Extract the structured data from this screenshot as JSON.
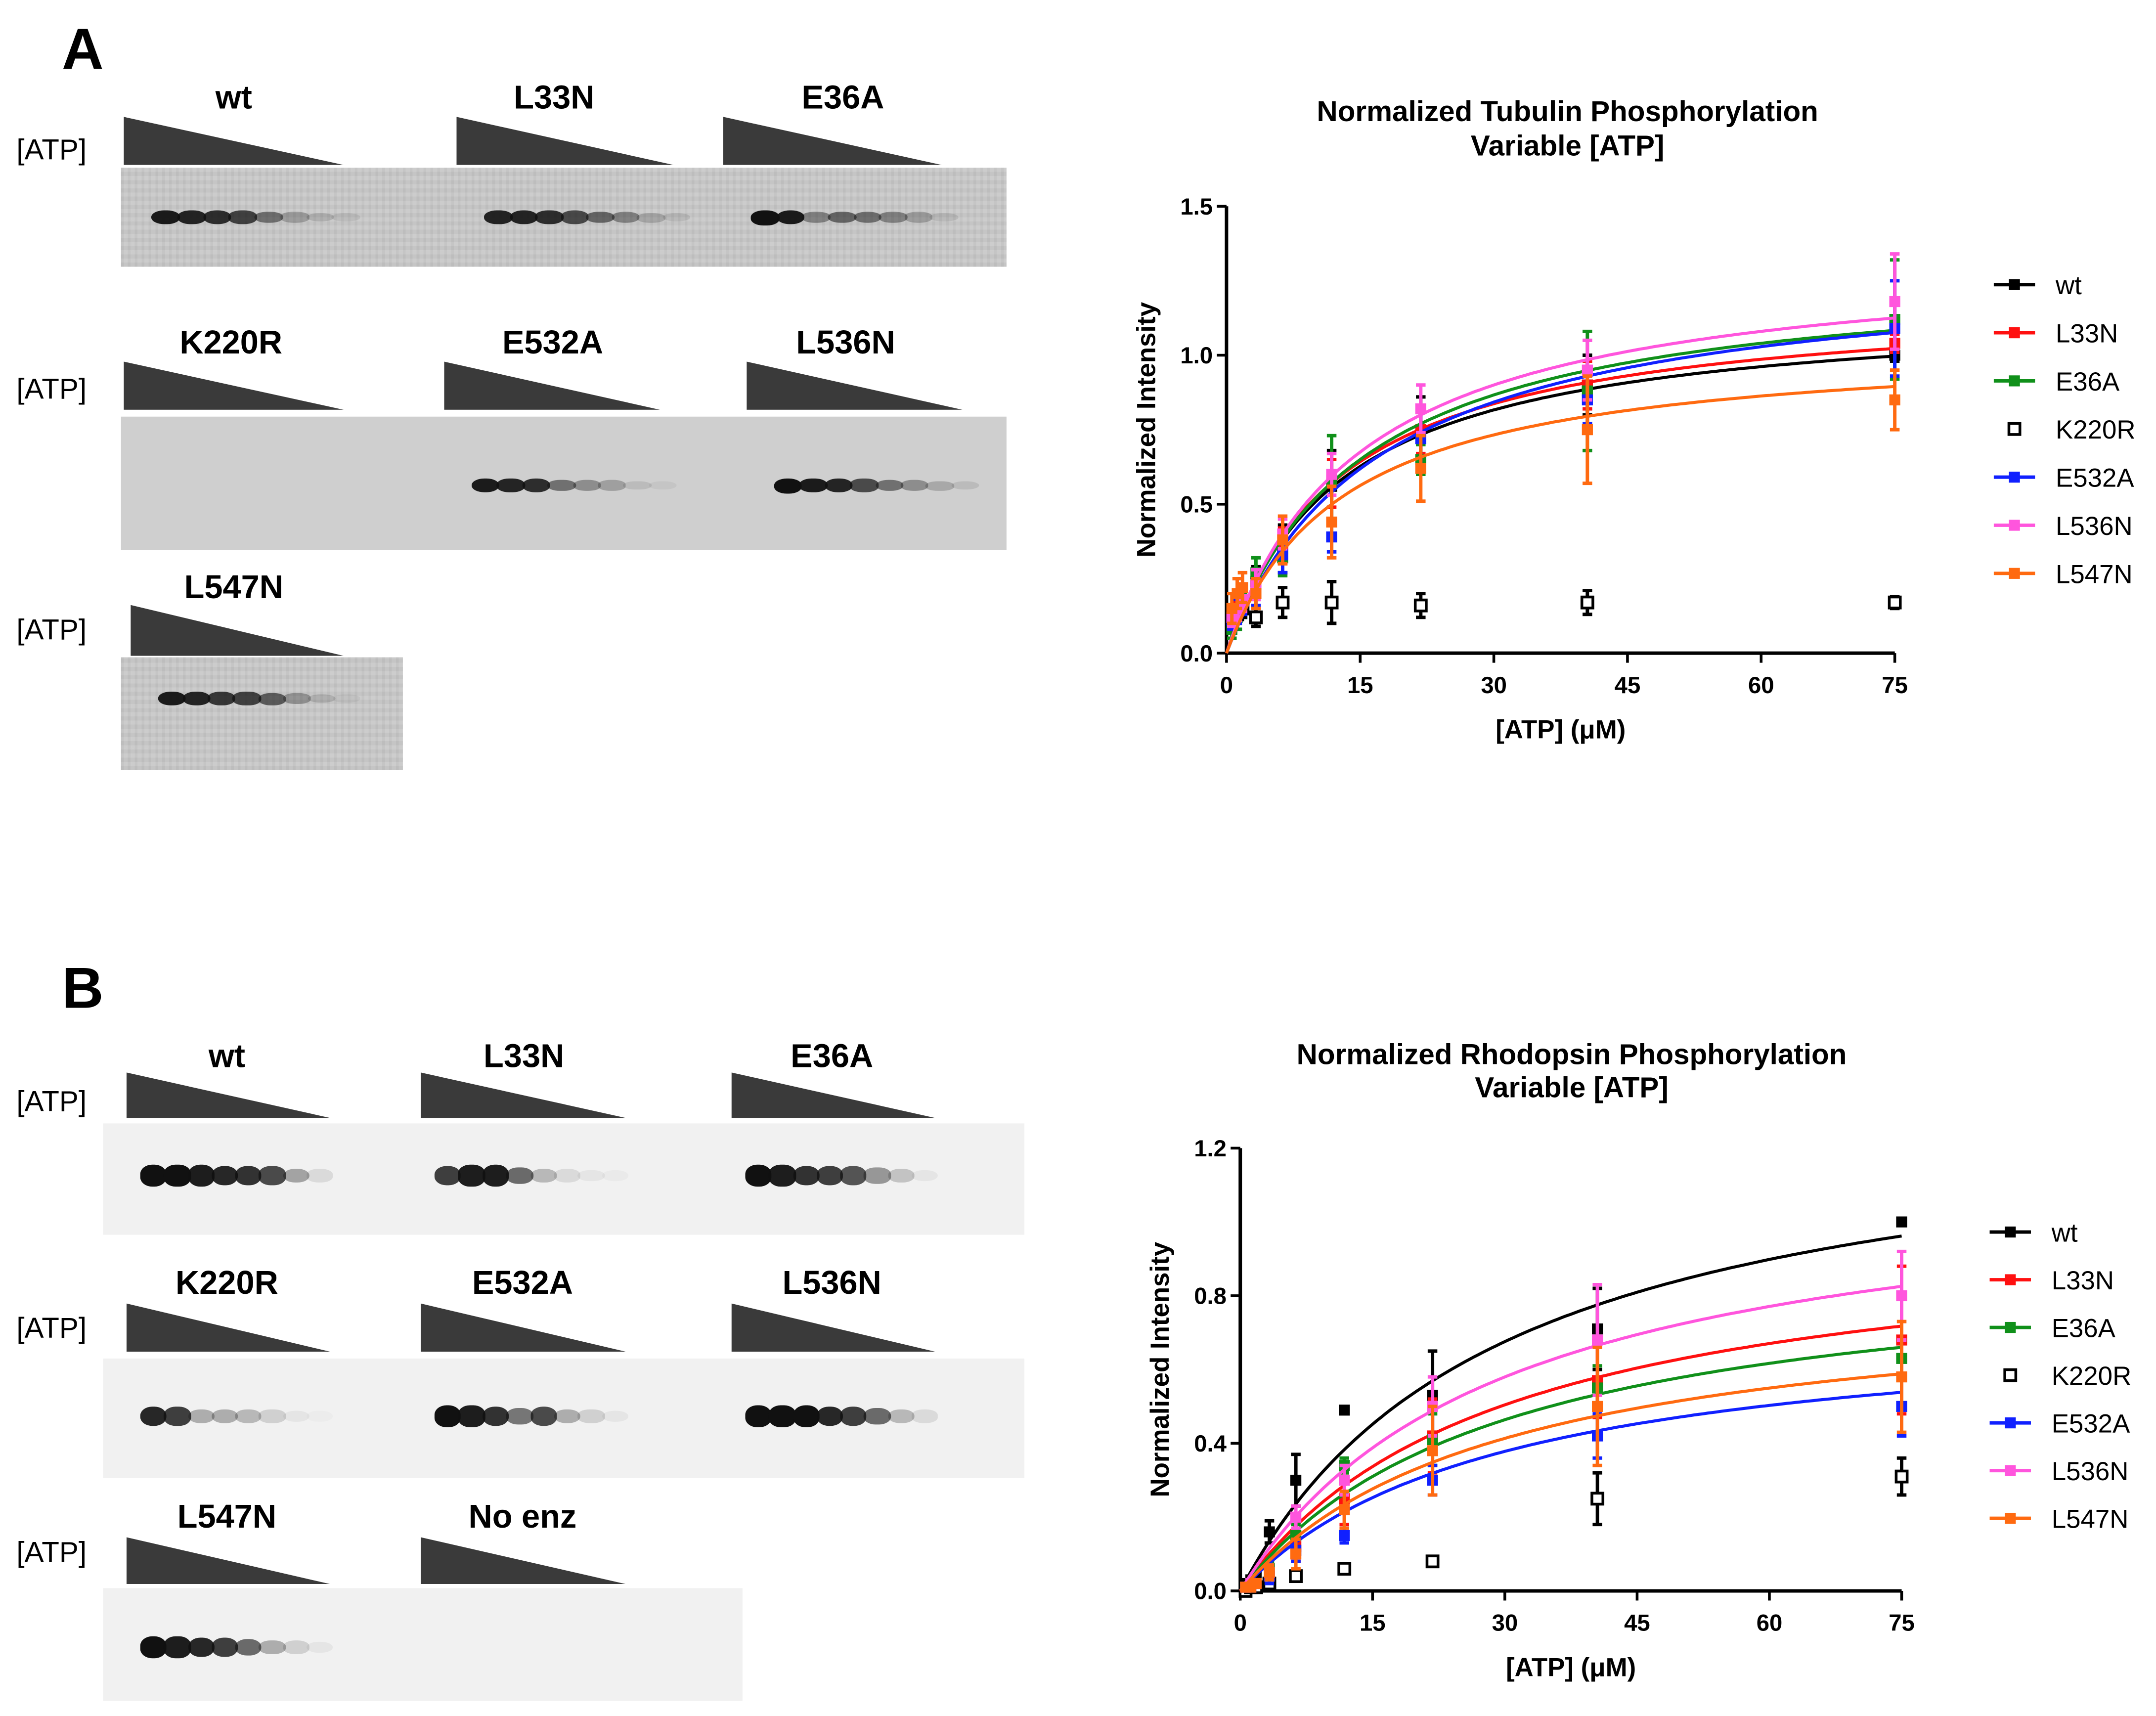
{
  "panels": [
    {
      "letter": "A",
      "atp_label": "[ATP]",
      "rows": [
        {
          "lanes": [
            {
              "label": "wt",
              "bands": [
                0.95,
                0.9,
                0.85,
                0.75,
                0.5,
                0.25,
                0.15,
                0.08
              ]
            },
            {
              "label": "L33N",
              "bands": [
                0.9,
                0.9,
                0.85,
                0.7,
                0.55,
                0.4,
                0.2,
                0.1
              ]
            },
            {
              "label": "E36A",
              "bands": [
                1,
                0.95,
                0.4,
                0.55,
                0.5,
                0.4,
                0.25,
                0.1
              ]
            }
          ]
        },
        {
          "lanes": [
            {
              "label": "K220R",
              "bands": [
                0,
                0,
                0,
                0,
                0,
                0,
                0,
                0
              ]
            },
            {
              "label": "E532A",
              "bands": [
                0.95,
                0.9,
                0.85,
                0.5,
                0.35,
                0.25,
                0.1,
                0.05
              ]
            },
            {
              "label": "L536N",
              "bands": [
                1,
                0.95,
                0.9,
                0.7,
                0.5,
                0.35,
                0.2,
                0.1
              ]
            }
          ]
        },
        {
          "lanes": [
            {
              "label": "L547N",
              "bands": [
                0.95,
                0.9,
                0.8,
                0.75,
                0.6,
                0.3,
                0.15,
                0.05
              ]
            }
          ]
        }
      ]
    },
    {
      "letter": "B",
      "atp_label": "[ATP]",
      "rows": [
        {
          "lanes": [
            {
              "label": "wt",
              "bands": [
                1,
                1,
                0.95,
                0.9,
                0.85,
                0.75,
                0.35,
                0.1
              ]
            },
            {
              "label": "L33N",
              "bands": [
                0.8,
                0.95,
                0.95,
                0.6,
                0.25,
                0.1,
                0.05,
                0.03
              ]
            },
            {
              "label": "E36A",
              "bands": [
                1,
                0.95,
                0.85,
                0.8,
                0.7,
                0.4,
                0.2,
                0.05
              ]
            }
          ]
        },
        {
          "lanes": [
            {
              "label": "K220R",
              "bands": [
                0.9,
                0.8,
                0.3,
                0.3,
                0.25,
                0.15,
                0.05,
                0.02
              ]
            },
            {
              "label": "E532A",
              "bands": [
                1,
                0.95,
                0.85,
                0.55,
                0.75,
                0.3,
                0.15,
                0.05
              ]
            },
            {
              "label": "L536N",
              "bands": [
                1,
                1,
                1,
                0.9,
                0.8,
                0.6,
                0.25,
                0.1
              ]
            }
          ]
        },
        {
          "lanes": [
            {
              "label": "L547N",
              "bands": [
                1,
                0.95,
                0.9,
                0.8,
                0.6,
                0.3,
                0.15,
                0.05
              ]
            },
            {
              "label": "No enz",
              "bands": [
                0,
                0,
                0,
                0,
                0,
                0,
                0,
                0
              ]
            }
          ]
        }
      ]
    }
  ],
  "chart_data": [
    {
      "type": "line",
      "title": [
        "Normalized Tubulin Phosphorylation",
        "Variable [ATP]"
      ],
      "xlabel": "[ATP] (μM)",
      "ylabel": "Normalized Intensity",
      "xlim": [
        0,
        75
      ],
      "ylim": [
        0,
        1.5
      ],
      "xticks": [
        0,
        15,
        30,
        45,
        60,
        75
      ],
      "yticks": [
        "0.0",
        "0.5",
        "1.0",
        "1.5"
      ],
      "grid": false,
      "legend": "right",
      "x": [
        0.6,
        1.2,
        1.8,
        3.3,
        6.3,
        11.8,
        21.8,
        40.5,
        75
      ],
      "series": [
        {
          "name": "wt",
          "color": "#000000",
          "marker": "filled",
          "fit": {
            "Vmax": 1.17,
            "Km": 13
          },
          "values": [
            0.13,
            0.15,
            0.18,
            0.24,
            0.35,
            0.56,
            0.74,
            0.9,
            1.0
          ],
          "err": [
            0.03,
            0.04,
            0.05,
            0.05,
            0.08,
            0.12,
            0.12,
            0.1,
            0.02
          ]
        },
        {
          "name": "L33N",
          "color": "#ff1010",
          "marker": "filled",
          "fit": {
            "Vmax": 1.2,
            "Km": 13
          },
          "values": [
            0.12,
            0.16,
            0.18,
            0.23,
            0.36,
            0.57,
            0.75,
            0.9,
            1.04
          ],
          "err": [
            0.04,
            0.05,
            0.05,
            0.05,
            0.06,
            0.08,
            0.08,
            0.08,
            0.03
          ]
        },
        {
          "name": "E36A",
          "color": "#10901a",
          "marker": "filled",
          "fit": {
            "Vmax": 1.3,
            "Km": 15
          },
          "values": [
            0.08,
            0.12,
            0.16,
            0.27,
            0.32,
            0.58,
            0.65,
            0.88,
            1.12
          ],
          "err": [
            0.03,
            0.04,
            0.04,
            0.05,
            0.06,
            0.15,
            0.05,
            0.2,
            0.2
          ]
        },
        {
          "name": "K220R",
          "color": "#000000",
          "marker": "open",
          "fit": null,
          "values": [
            0.12,
            0.13,
            0.15,
            0.12,
            0.17,
            0.17,
            0.16,
            0.17,
            0.17
          ],
          "err": [
            0.02,
            0.02,
            0.03,
            0.03,
            0.05,
            0.07,
            0.04,
            0.04,
            0.02
          ]
        },
        {
          "name": "E532A",
          "color": "#1020ff",
          "marker": "filled",
          "fit": {
            "Vmax": 1.32,
            "Km": 17
          },
          "values": [
            0.11,
            0.14,
            0.17,
            0.2,
            0.33,
            0.39,
            0.72,
            0.85,
            1.09
          ],
          "err": [
            0.03,
            0.04,
            0.04,
            0.04,
            0.06,
            0.05,
            0.1,
            0.08,
            0.16
          ]
        },
        {
          "name": "L536N",
          "color": "#ff55dd",
          "marker": "filled",
          "fit": {
            "Vmax": 1.35,
            "Km": 15
          },
          "values": [
            0.12,
            0.15,
            0.18,
            0.23,
            0.4,
            0.6,
            0.82,
            0.95,
            1.18
          ],
          "err": [
            0.03,
            0.04,
            0.04,
            0.05,
            0.05,
            0.07,
            0.08,
            0.1,
            0.16
          ]
        },
        {
          "name": "L547N",
          "color": "#ff6a10",
          "marker": "filled",
          "fit": {
            "Vmax": 1.05,
            "Km": 13
          },
          "values": [
            0.15,
            0.2,
            0.22,
            0.2,
            0.38,
            0.44,
            0.62,
            0.75,
            0.85
          ],
          "err": [
            0.05,
            0.05,
            0.05,
            0.05,
            0.08,
            0.12,
            0.11,
            0.18,
            0.1
          ]
        }
      ]
    },
    {
      "type": "line",
      "title": [
        "Normalized Rhodopsin Phosphorylation",
        "Variable [ATP]"
      ],
      "xlabel": "[ATP] (μM)",
      "ylabel": "Normalized Intensity",
      "xlim": [
        0,
        75
      ],
      "ylim": [
        0,
        1.2
      ],
      "xticks": [
        0,
        15,
        30,
        45,
        60,
        75
      ],
      "yticks": [
        "0.0",
        "0.4",
        "0.8",
        "1.2"
      ],
      "grid": false,
      "legend": "right",
      "x": [
        0.6,
        1.2,
        1.8,
        3.3,
        6.3,
        11.8,
        21.8,
        40.5,
        75
      ],
      "series": [
        {
          "name": "wt",
          "color": "#000000",
          "marker": "filled",
          "fit": {
            "Vmax": 1.34,
            "Km": 29.5
          },
          "values": [
            0.02,
            0.03,
            0.04,
            0.16,
            0.3,
            0.49,
            0.53,
            0.71,
            1.0
          ],
          "err": [
            0.01,
            0.01,
            0.01,
            0.03,
            0.07,
            0.0,
            0.12,
            0.11,
            0.0
          ]
        },
        {
          "name": "L33N",
          "color": "#ff1010",
          "marker": "filled",
          "fit": {
            "Vmax": 1.0,
            "Km": 29.5
          },
          "values": [
            0.01,
            0.01,
            0.02,
            0.04,
            0.12,
            0.25,
            0.42,
            0.57,
            0.68
          ],
          "err": [
            0.01,
            0.01,
            0.01,
            0.02,
            0.04,
            0.07,
            0.1,
            0.1,
            0.2
          ]
        },
        {
          "name": "E36A",
          "color": "#10901a",
          "marker": "filled",
          "fit": {
            "Vmax": 0.92,
            "Km": 29.5
          },
          "values": [
            0.01,
            0.01,
            0.02,
            0.06,
            0.15,
            0.34,
            0.41,
            0.55,
            0.63
          ],
          "err": [
            0.01,
            0.01,
            0.01,
            0.02,
            0.03,
            0.02,
            0.07,
            0.06,
            0.05
          ]
        },
        {
          "name": "K220R",
          "color": "#000000",
          "marker": "open",
          "fit": null,
          "values": [
            0.0,
            0.01,
            0.01,
            0.02,
            0.04,
            0.06,
            0.08,
            0.25,
            0.31
          ],
          "err": [
            0.0,
            0.0,
            0.01,
            0.01,
            0.01,
            0.01,
            0.01,
            0.07,
            0.05
          ]
        },
        {
          "name": "E532A",
          "color": "#1020ff",
          "marker": "filled",
          "fit": {
            "Vmax": 0.75,
            "Km": 29.5
          },
          "values": [
            0.01,
            0.01,
            0.02,
            0.04,
            0.11,
            0.15,
            0.3,
            0.42,
            0.5
          ],
          "err": [
            0.01,
            0.01,
            0.01,
            0.02,
            0.03,
            0.02,
            0.04,
            0.06,
            0.08
          ]
        },
        {
          "name": "L536N",
          "color": "#ff55dd",
          "marker": "filled",
          "fit": {
            "Vmax": 1.15,
            "Km": 29.5
          },
          "values": [
            0.01,
            0.02,
            0.02,
            0.05,
            0.2,
            0.3,
            0.5,
            0.68,
            0.8
          ],
          "err": [
            0.01,
            0.01,
            0.01,
            0.02,
            0.03,
            0.04,
            0.08,
            0.15,
            0.12
          ]
        },
        {
          "name": "L547N",
          "color": "#ff6a10",
          "marker": "filled",
          "fit": {
            "Vmax": 0.82,
            "Km": 29.5
          },
          "values": [
            0.01,
            0.01,
            0.02,
            0.05,
            0.1,
            0.22,
            0.38,
            0.5,
            0.58
          ],
          "err": [
            0.01,
            0.01,
            0.01,
            0.02,
            0.04,
            0.05,
            0.12,
            0.16,
            0.15
          ]
        }
      ]
    }
  ]
}
